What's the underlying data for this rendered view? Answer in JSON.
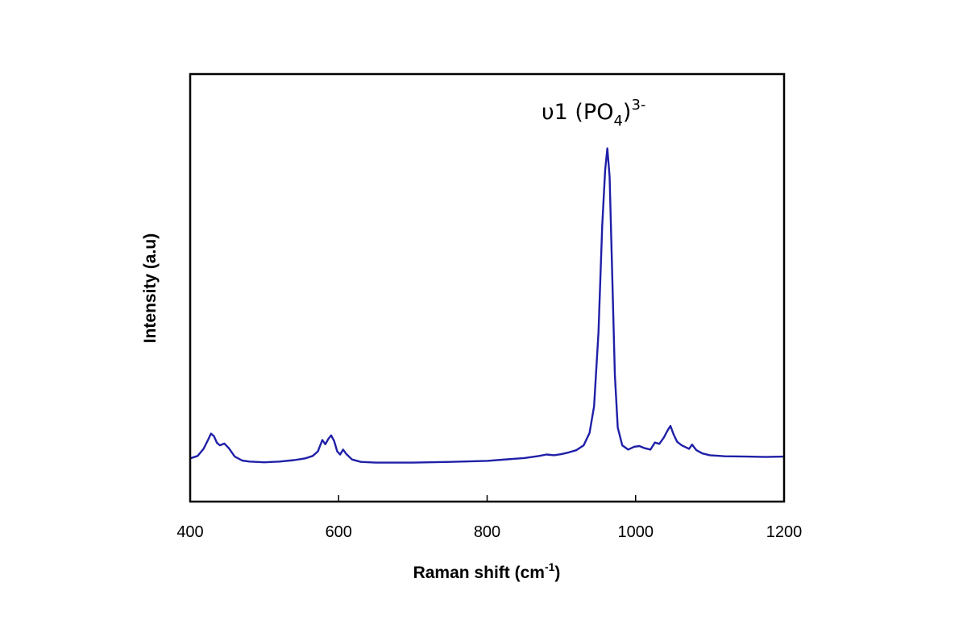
{
  "chart_data": {
    "type": "line",
    "xlabel": "Raman shift (cm",
    "xlabel_sup": "-1",
    "xlabel_end": ")",
    "ylabel": "Intensity (a.u)",
    "xlim": [
      400,
      1200
    ],
    "ylim": [
      0,
      100
    ],
    "xticks": [
      400,
      600,
      800,
      1000,
      1200
    ],
    "xtick_labels": [
      "400",
      "600",
      "800",
      "1000",
      "1200"
    ],
    "grid": false,
    "legend": "none",
    "line_color": "#1f1fa8",
    "annotation": {
      "text_main": "υ1 (PO",
      "text_sub": "4",
      "text_close": ")",
      "text_sup": "3-",
      "x": 962
    },
    "series": [
      {
        "points": [
          [
            400,
            6.3
          ],
          [
            410,
            7.0
          ],
          [
            418,
            9.0
          ],
          [
            424,
            11.5
          ],
          [
            428,
            13.3
          ],
          [
            432,
            12.6
          ],
          [
            436,
            10.7
          ],
          [
            440,
            10.0
          ],
          [
            446,
            10.5
          ],
          [
            452,
            9.2
          ],
          [
            460,
            6.8
          ],
          [
            470,
            5.7
          ],
          [
            480,
            5.4
          ],
          [
            500,
            5.2
          ],
          [
            520,
            5.4
          ],
          [
            540,
            5.8
          ],
          [
            555,
            6.3
          ],
          [
            565,
            7.0
          ],
          [
            572,
            8.3
          ],
          [
            578,
            11.5
          ],
          [
            582,
            10.3
          ],
          [
            586,
            11.8
          ],
          [
            590,
            12.8
          ],
          [
            594,
            11.2
          ],
          [
            598,
            8.3
          ],
          [
            602,
            7.4
          ],
          [
            606,
            8.8
          ],
          [
            610,
            7.6
          ],
          [
            618,
            6.0
          ],
          [
            630,
            5.3
          ],
          [
            650,
            5.1
          ],
          [
            700,
            5.1
          ],
          [
            750,
            5.3
          ],
          [
            800,
            5.6
          ],
          [
            850,
            6.4
          ],
          [
            870,
            7.0
          ],
          [
            880,
            7.4
          ],
          [
            890,
            7.2
          ],
          [
            900,
            7.5
          ],
          [
            910,
            8.0
          ],
          [
            920,
            8.6
          ],
          [
            930,
            10.0
          ],
          [
            938,
            13.5
          ],
          [
            944,
            21.0
          ],
          [
            950,
            42.0
          ],
          [
            955,
            72.0
          ],
          [
            959,
            88.0
          ],
          [
            962,
            94.0
          ],
          [
            965,
            86.0
          ],
          [
            968,
            62.0
          ],
          [
            972,
            30.0
          ],
          [
            976,
            15.0
          ],
          [
            982,
            10.0
          ],
          [
            990,
            8.8
          ],
          [
            998,
            9.6
          ],
          [
            1005,
            9.8
          ],
          [
            1012,
            9.2
          ],
          [
            1020,
            8.8
          ],
          [
            1026,
            10.8
          ],
          [
            1032,
            10.4
          ],
          [
            1038,
            12.2
          ],
          [
            1043,
            14.2
          ],
          [
            1047,
            15.5
          ],
          [
            1051,
            13.2
          ],
          [
            1056,
            11.0
          ],
          [
            1062,
            10.0
          ],
          [
            1068,
            9.4
          ],
          [
            1072,
            9.0
          ],
          [
            1076,
            10.2
          ],
          [
            1082,
            8.6
          ],
          [
            1090,
            7.7
          ],
          [
            1100,
            7.2
          ],
          [
            1120,
            6.9
          ],
          [
            1150,
            6.8
          ],
          [
            1175,
            6.7
          ],
          [
            1200,
            6.8
          ]
        ]
      }
    ]
  }
}
